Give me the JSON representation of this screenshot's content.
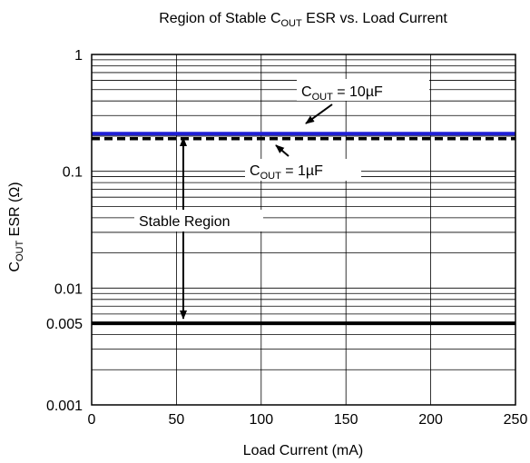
{
  "chart_data": {
    "type": "line",
    "title_parts": [
      "Region of Stable C",
      "OUT",
      " ESR vs. Load Current"
    ],
    "xlabel": "Load Current (mA)",
    "ylabel_parts": [
      "C",
      "OUT",
      " ESR (Ω)"
    ],
    "x_scale": "linear",
    "y_scale": "log",
    "xlim": [
      0,
      250
    ],
    "ylim": [
      0.001,
      1
    ],
    "x_ticks": [
      0,
      50,
      100,
      150,
      200,
      250
    ],
    "x_tick_labels": [
      "0",
      "50",
      "100",
      "150",
      "200",
      "250"
    ],
    "y_ticks": [
      0.001,
      0.005,
      0.01,
      0.1,
      1
    ],
    "y_tick_labels": [
      "0.001",
      "0.005",
      "0.01",
      "0.1",
      "1"
    ],
    "grid": true,
    "series": [
      {
        "label_parts": [
          "C",
          "OUT",
          " = 10µF"
        ],
        "x": [
          0,
          250
        ],
        "y": [
          0.21,
          0.21
        ],
        "color": "#1f1fd6",
        "style": "solid"
      },
      {
        "label_parts": [
          "C",
          "OUT",
          " = 1µF"
        ],
        "x": [
          0,
          250
        ],
        "y": [
          0.19,
          0.19
        ],
        "color": "#000000",
        "style": "dashed"
      },
      {
        "x": [
          0,
          250
        ],
        "y": [
          0.005,
          0.005
        ],
        "color": "#000000",
        "style": "solid"
      }
    ],
    "annotations": [
      {
        "text": "Stable Region"
      }
    ]
  }
}
